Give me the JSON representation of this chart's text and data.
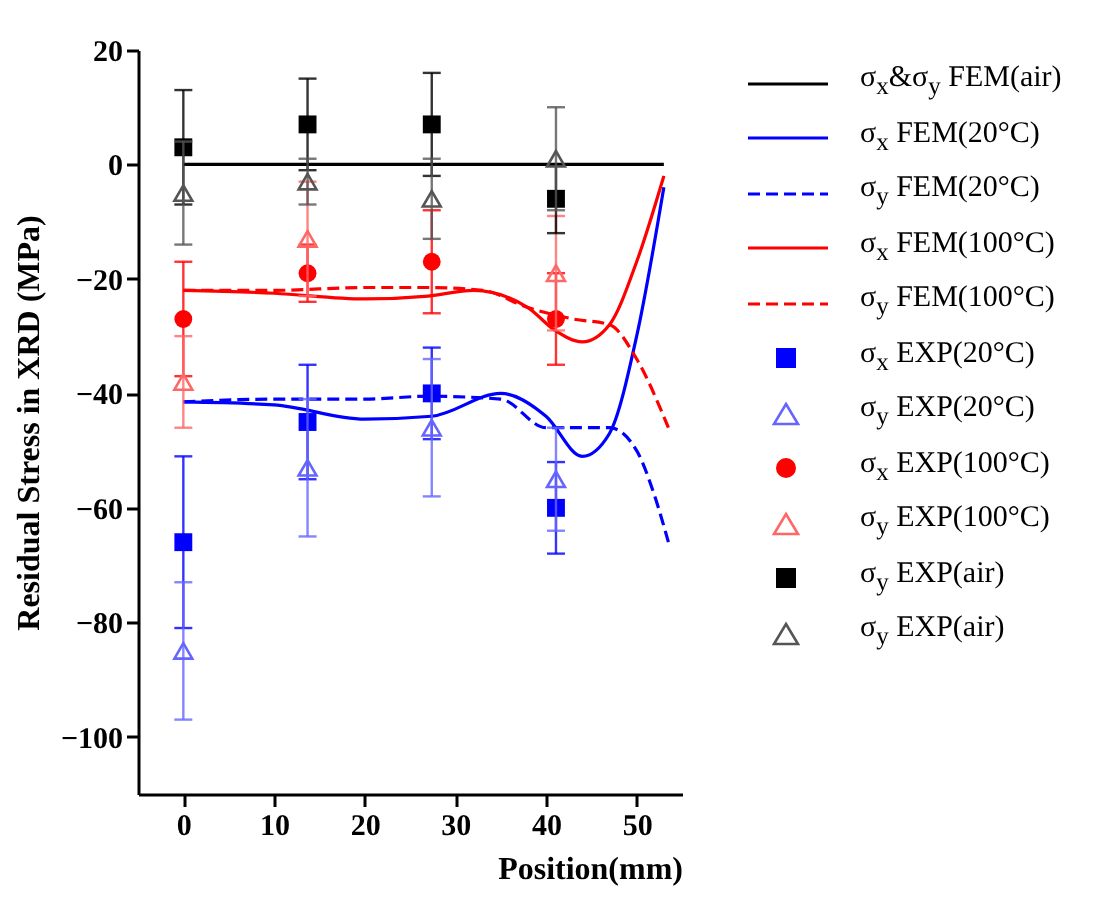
{
  "chart_data": {
    "type": "line",
    "xlabel": "Position(mm)",
    "ylabel": "Residual Stress in XRD (MPa)",
    "xlim": [
      -5,
      55
    ],
    "xticks": [
      0,
      10,
      20,
      30,
      40,
      50
    ],
    "ylim": [
      -110,
      20
    ],
    "yticks": [
      20,
      0,
      -20,
      -40,
      -60,
      -80,
      -100
    ],
    "grid": false,
    "legend": "right",
    "series": [
      {
        "name": "σ$_{x}$&σ$_{y}$ FEM(air)",
        "color": "#000000",
        "line_style": "solid",
        "x": [
          0,
          53
        ],
        "values": [
          0,
          0
        ]
      },
      {
        "name": "σ$_{x}$ FEM(20°C)",
        "color": "#0000ff",
        "line_style": "solid",
        "x": [
          0,
          10,
          20,
          27.4,
          35,
          40,
          44,
          47,
          50,
          53
        ],
        "values": [
          -41.5,
          -42,
          -44.5,
          -44,
          -40,
          -44,
          -51,
          -47,
          -30,
          -4
        ]
      },
      {
        "name": "σ$_{y}$ FEM(20°C)",
        "color": "#0000ff",
        "line_style": "dashed",
        "x": [
          0,
          10,
          20,
          27,
          35,
          40,
          47,
          50,
          52,
          53.5
        ],
        "values": [
          -41.5,
          -41,
          -41,
          -40.5,
          -41,
          -46,
          -46,
          -50,
          -58,
          -66
        ]
      },
      {
        "name": "σ$_{x}$ FEM(100°C)",
        "color": "#ff0000",
        "line_style": "solid",
        "x": [
          0,
          10,
          20,
          27,
          32,
          38,
          41,
          44,
          47,
          50,
          53
        ],
        "values": [
          -22,
          -22.5,
          -23.5,
          -23,
          -22,
          -25,
          -29,
          -31,
          -28,
          -17,
          -2
        ]
      },
      {
        "name": "σ$_{y}$ FEM(100°C)",
        "color": "#ff0000",
        "line_style": "dashed",
        "x": [
          0,
          10,
          20,
          27,
          33,
          38,
          43,
          47,
          50,
          53.5
        ],
        "values": [
          -22,
          -22,
          -21.5,
          -21.5,
          -22,
          -25,
          -27,
          -28,
          -34,
          -46
        ]
      },
      {
        "name": "σ$_{x}$ EXP(20°C)",
        "type": "scatter",
        "marker": "square",
        "color": "#0000ff",
        "x": [
          0,
          13.7,
          27.4,
          41.1
        ],
        "values": [
          -66,
          -45,
          -40,
          -60
        ],
        "errors": [
          15,
          10,
          8,
          8
        ]
      },
      {
        "name": "σ$_{y}$ EXP(20°C)",
        "type": "scatter",
        "marker": "triangle",
        "color": "#6666ff",
        "x": [
          0,
          13.7,
          27.4,
          41.1
        ],
        "values": [
          -85,
          -53,
          -46,
          -55
        ],
        "errors": [
          12,
          12,
          12,
          9
        ]
      },
      {
        "name": "σ$_{x}$ EXP(100°C)",
        "type": "scatter",
        "marker": "circle",
        "color": "#ff0000",
        "x": [
          0,
          13.7,
          27.4,
          41.1
        ],
        "values": [
          -27,
          -19,
          -17,
          -27
        ],
        "errors": [
          10,
          5,
          9,
          8
        ]
      },
      {
        "name": "σ$_{y}$ EXP(100°C)",
        "type": "scatter",
        "marker": "triangle",
        "color": "#ff6666",
        "x": [
          0,
          13.7,
          27.4,
          41.1
        ],
        "values": [
          -38,
          -13,
          null,
          -19
        ],
        "errors": [
          8,
          10,
          null,
          10
        ]
      },
      {
        "name": "σ$_{y}$ EXP(air)",
        "type": "scatter",
        "marker": "square",
        "color": "#000000",
        "x": [
          0,
          13.7,
          27.4,
          41.1
        ],
        "values": [
          3,
          7,
          7,
          -6
        ],
        "errors": [
          10,
          8,
          9,
          6
        ]
      },
      {
        "name": "σ$_{y}$ EXP(air)",
        "type": "scatter",
        "marker": "triangle",
        "color": "#555555",
        "x": [
          0,
          13.7,
          27.4,
          41.1
        ],
        "values": [
          -5,
          -3,
          -6,
          1
        ],
        "errors": [
          9,
          4,
          7,
          9
        ]
      }
    ]
  }
}
